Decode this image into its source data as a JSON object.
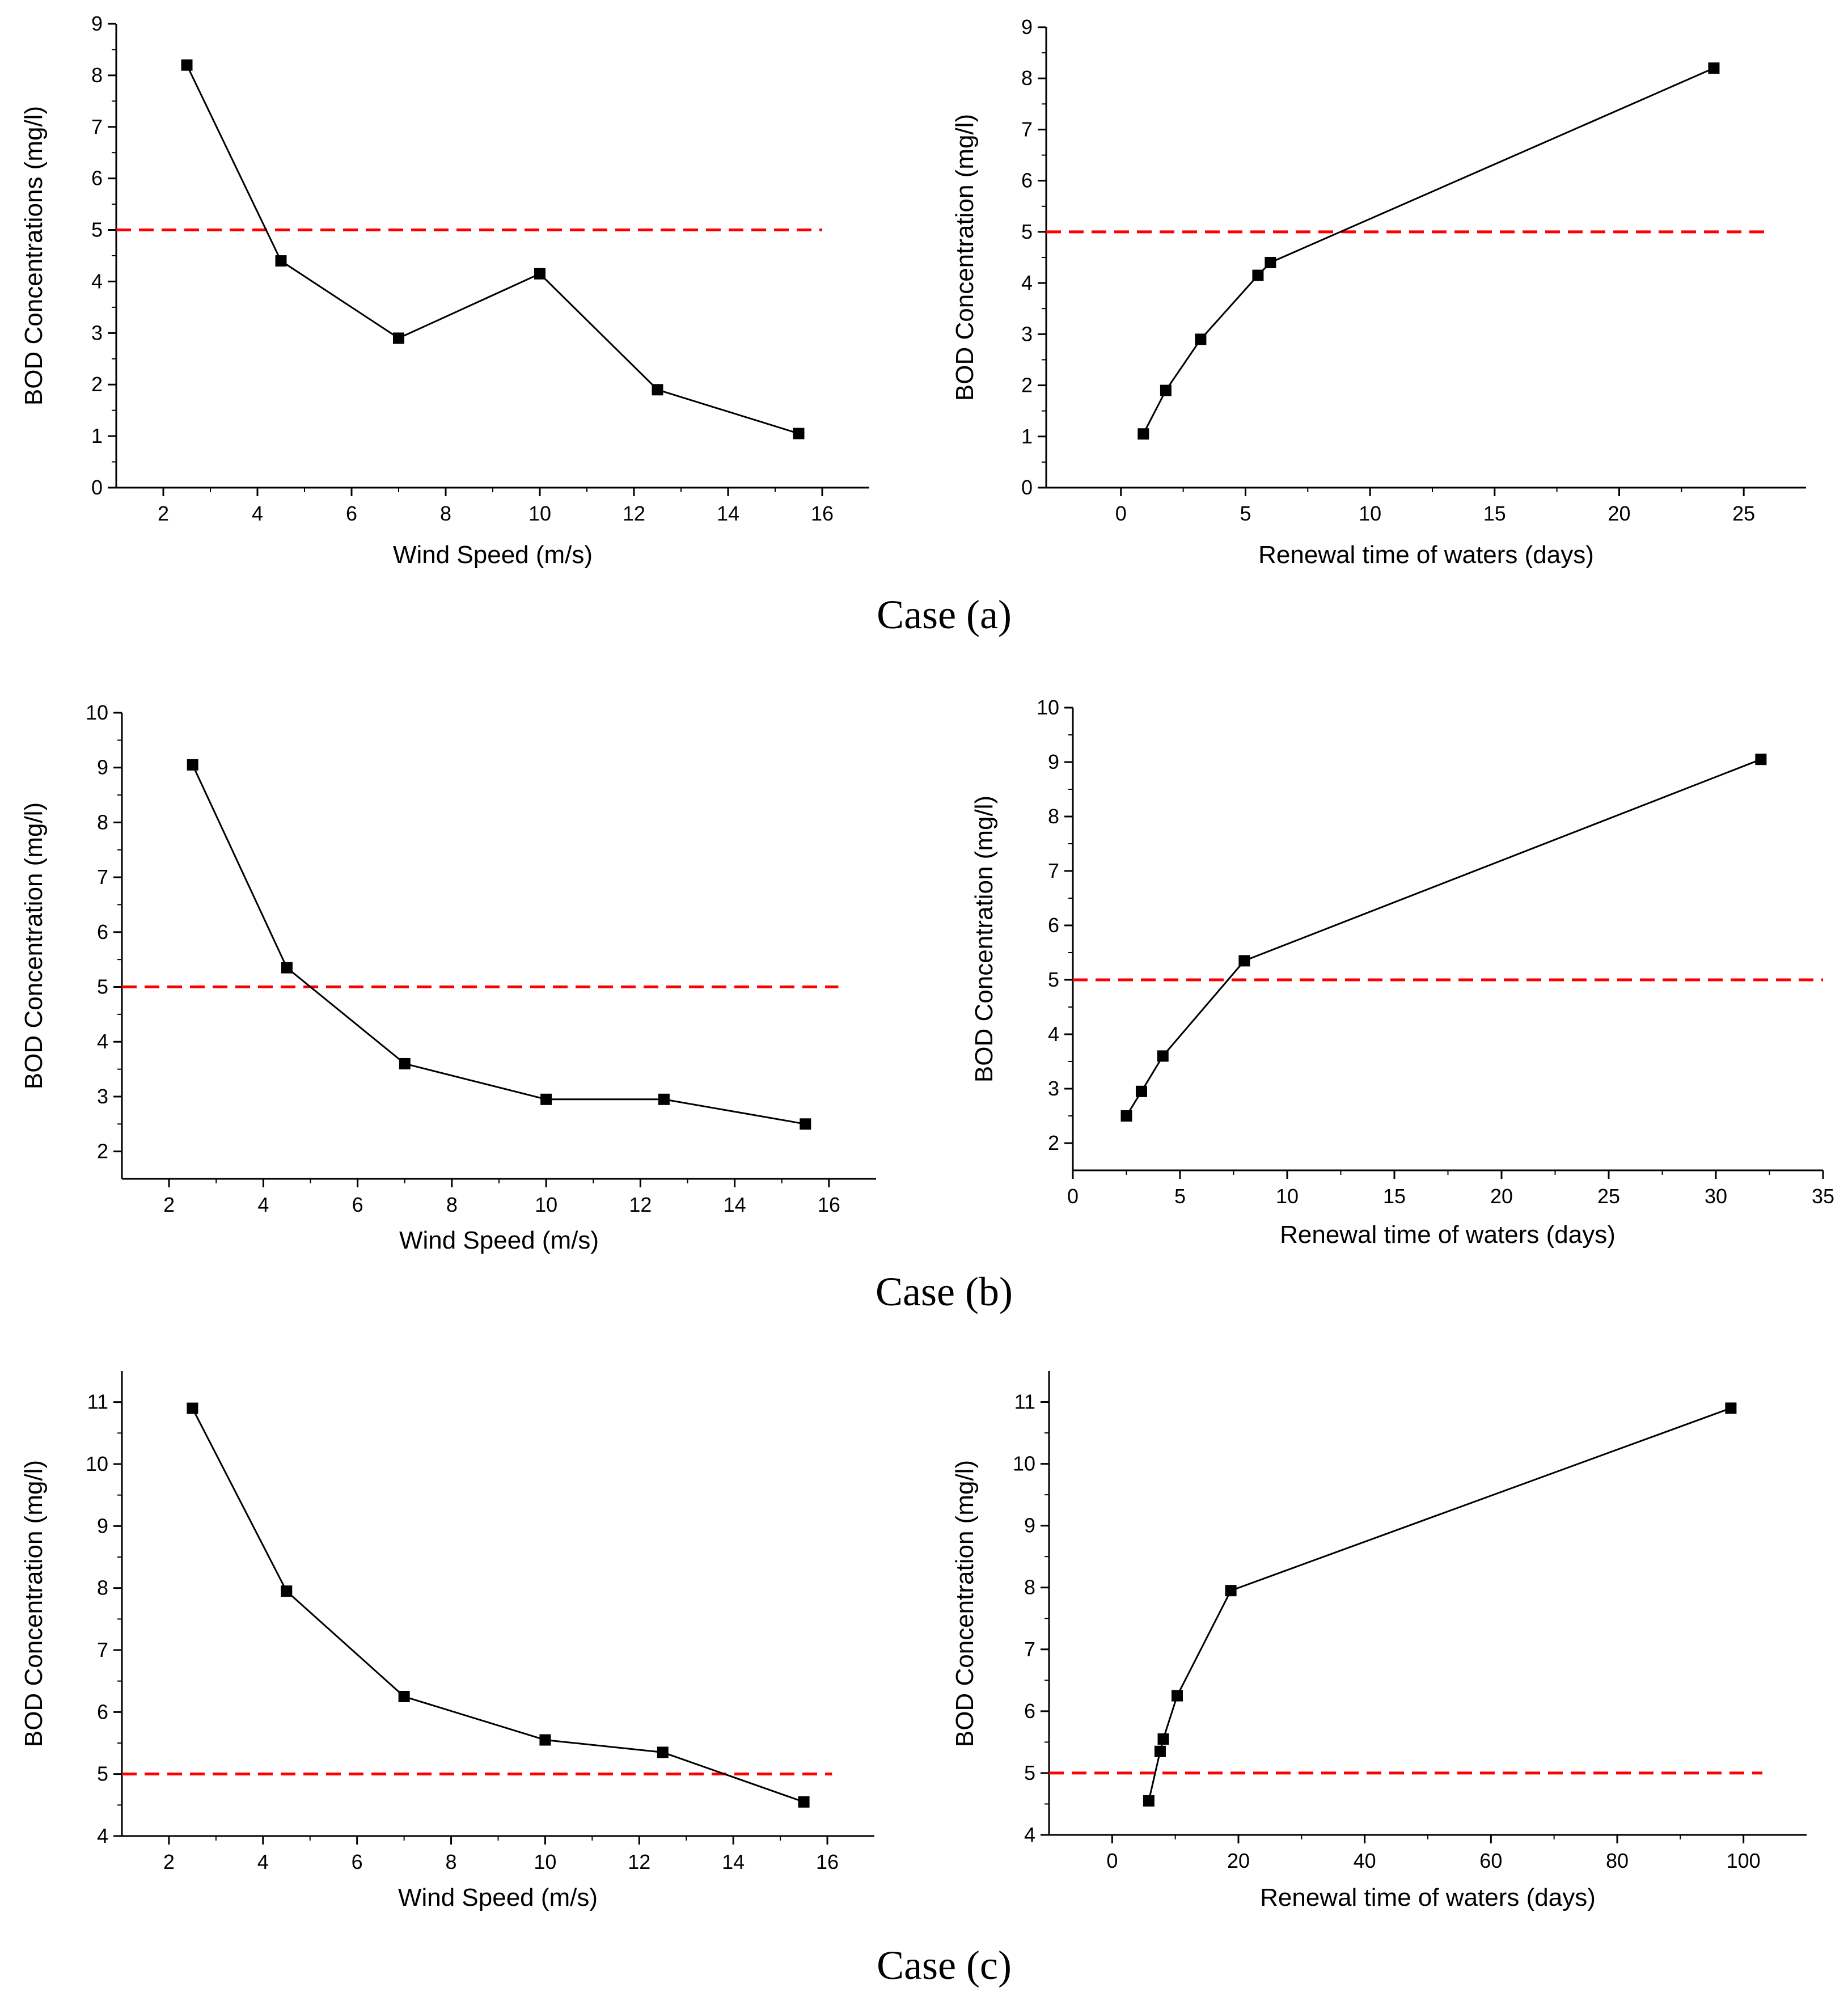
{
  "captions": [
    "Case (a)",
    "Case (b)",
    "Case (c)"
  ],
  "threshold_color": "#ff0000",
  "line_color": "#000000",
  "chart_data": [
    {
      "id": "a1",
      "type": "line",
      "title": "",
      "xlabel": "Wind Speed (m/s)",
      "ylabel": "BOD Concentrations (mg/l)",
      "xlim": [
        1,
        17
      ],
      "ylim": [
        0,
        9
      ],
      "xticks": [
        2,
        4,
        6,
        8,
        10,
        12,
        14,
        16
      ],
      "xtick_labels": [
        "2",
        "4",
        "6",
        "8",
        "10",
        "12",
        "14",
        "16"
      ],
      "yticks": [
        0,
        1,
        2,
        3,
        4,
        5,
        6,
        7,
        8,
        9
      ],
      "ytick_labels": [
        "0",
        "1",
        "2",
        "3",
        "4",
        "5",
        "6",
        "7",
        "8",
        "9"
      ],
      "series": [
        {
          "name": "BOD",
          "x": [
            2.5,
            4.5,
            7,
            10,
            12.5,
            15.5
          ],
          "y": [
            8.2,
            4.4,
            2.9,
            4.15,
            1.9,
            1.05
          ]
        }
      ],
      "threshold": {
        "y": 5,
        "x_range": [
          1,
          16
        ]
      }
    },
    {
      "id": "a2",
      "type": "line",
      "title": "",
      "xlabel": "Renewal time of waters (days)",
      "ylabel": "BOD Concentration (mg/l)",
      "xlim": [
        -3,
        27.5
      ],
      "ylim": [
        0,
        9
      ],
      "xticks": [
        0,
        5,
        10,
        15,
        20,
        25
      ],
      "xtick_labels": [
        "0",
        "5",
        "10",
        "15",
        "20",
        "25"
      ],
      "yticks": [
        0,
        1,
        2,
        3,
        4,
        5,
        6,
        7,
        8,
        9
      ],
      "ytick_labels": [
        "0",
        "1",
        "2",
        "3",
        "4",
        "5",
        "6",
        "7",
        "8",
        "9"
      ],
      "series": [
        {
          "name": "BOD",
          "x": [
            0.9,
            1.8,
            3.2,
            5.5,
            6.0,
            23.8
          ],
          "y": [
            1.05,
            1.9,
            2.9,
            4.15,
            4.4,
            8.2
          ]
        }
      ],
      "threshold": {
        "y": 5,
        "x_range": [
          -3,
          26
        ]
      }
    },
    {
      "id": "b1",
      "type": "line",
      "title": "",
      "xlabel": "Wind Speed (m/s)",
      "ylabel": "BOD Concentration (mg/l)",
      "xlim": [
        1,
        17
      ],
      "ylim": [
        1.5,
        10
      ],
      "xticks": [
        2,
        4,
        6,
        8,
        10,
        12,
        14,
        16
      ],
      "xtick_labels": [
        "2",
        "4",
        "6",
        "8",
        "10",
        "12",
        "14",
        "16"
      ],
      "yticks": [
        2,
        3,
        4,
        5,
        6,
        7,
        8,
        9,
        10
      ],
      "ytick_labels": [
        "2",
        "3",
        "4",
        "5",
        "6",
        "7",
        "8",
        "9",
        "10"
      ],
      "series": [
        {
          "name": "BOD",
          "x": [
            2.5,
            4.5,
            7,
            10,
            12.5,
            15.5
          ],
          "y": [
            9.05,
            5.35,
            3.6,
            2.95,
            2.95,
            2.5
          ]
        }
      ],
      "threshold": {
        "y": 5,
        "x_range": [
          1,
          16.2
        ]
      }
    },
    {
      "id": "b2",
      "type": "line",
      "title": "",
      "xlabel": "Renewal time of waters (days)",
      "ylabel": "BOD Concentration (mg/l)",
      "xlim": [
        0,
        35
      ],
      "ylim": [
        1.5,
        10
      ],
      "xticks": [
        0,
        5,
        10,
        15,
        20,
        25,
        30,
        35
      ],
      "xtick_labels": [
        "0",
        "5",
        "10",
        "15",
        "20",
        "25",
        "30",
        "35"
      ],
      "yticks": [
        2,
        3,
        4,
        5,
        6,
        7,
        8,
        9,
        10
      ],
      "ytick_labels": [
        "2",
        "3",
        "4",
        "5",
        "6",
        "7",
        "8",
        "9",
        "10"
      ],
      "series": [
        {
          "name": "BOD",
          "x": [
            2.5,
            3.2,
            4.2,
            8.0,
            32.1
          ],
          "y": [
            2.5,
            2.95,
            3.6,
            5.35,
            9.05
          ]
        }
      ],
      "threshold": {
        "y": 5,
        "x_range": [
          0,
          35
        ]
      }
    },
    {
      "id": "c1",
      "type": "line",
      "title": "",
      "xlabel": "Wind Speed (m/s)",
      "ylabel": "BOD Concentration (mg/l)",
      "xlim": [
        1,
        17
      ],
      "ylim": [
        4,
        11.5
      ],
      "xticks": [
        2,
        4,
        6,
        8,
        10,
        12,
        14,
        16
      ],
      "xtick_labels": [
        "2",
        "4",
        "6",
        "8",
        "10",
        "12",
        "14",
        "16"
      ],
      "yticks": [
        4,
        5,
        6,
        7,
        8,
        9,
        10,
        11
      ],
      "ytick_labels": [
        "4",
        "5",
        "6",
        "7",
        "8",
        "9",
        "10",
        "11"
      ],
      "series": [
        {
          "name": "BOD",
          "x": [
            2.5,
            4.5,
            7,
            10,
            12.5,
            15.5
          ],
          "y": [
            10.9,
            7.95,
            6.25,
            5.55,
            5.35,
            4.55
          ]
        }
      ],
      "threshold": {
        "y": 5,
        "x_range": [
          1,
          16.1
        ]
      }
    },
    {
      "id": "c2",
      "type": "line",
      "title": "",
      "xlabel": "Renewal time of waters (days)",
      "ylabel": "BOD Concentration (mg/l)",
      "xlim": [
        -10,
        110
      ],
      "ylim": [
        4,
        11.5
      ],
      "xticks": [
        0,
        20,
        40,
        60,
        80,
        100
      ],
      "xtick_labels": [
        "0",
        "20",
        "40",
        "60",
        "80",
        "100"
      ],
      "yticks": [
        4,
        5,
        6,
        7,
        8,
        9,
        10,
        11
      ],
      "ytick_labels": [
        "4",
        "5",
        "6",
        "7",
        "8",
        "9",
        "10",
        "11"
      ],
      "series": [
        {
          "name": "BOD",
          "x": [
            5.8,
            7.6,
            8.1,
            10.3,
            18.8,
            98.0
          ],
          "y": [
            4.55,
            5.35,
            5.55,
            6.25,
            7.95,
            10.9
          ]
        }
      ],
      "threshold": {
        "y": 5,
        "x_range": [
          -10,
          103
        ]
      }
    }
  ]
}
